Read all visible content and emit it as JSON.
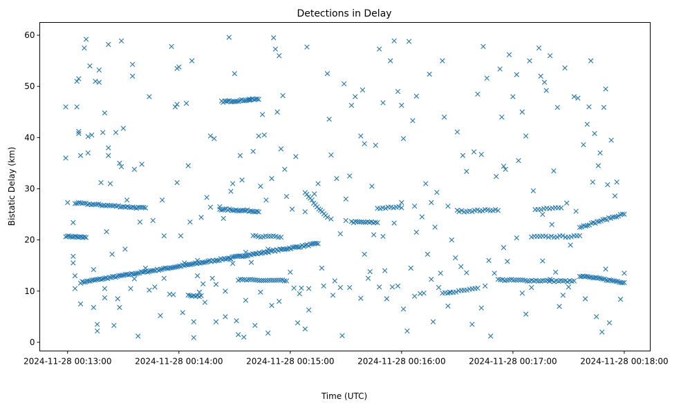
{
  "chart_data": {
    "type": "scatter",
    "title": "Detections in Delay",
    "xlabel": "Time (UTC)",
    "ylabel": "Bistatic Delay (km)",
    "x_units": "seconds after 2024-11-28 00:13:00",
    "xlim": [
      -15,
      314
    ],
    "ylim": [
      -1.7,
      62.5
    ],
    "grid": false,
    "marker": "x",
    "color": "#1f77b4",
    "xticks": [
      {
        "value": 0,
        "label": "2024-11-28 00:13:00"
      },
      {
        "value": 60,
        "label": "2024-11-28 00:14:00"
      },
      {
        "value": 120,
        "label": "2024-11-28 00:15:00"
      },
      {
        "value": 180,
        "label": "2024-11-28 00:16:00"
      },
      {
        "value": 240,
        "label": "2024-11-28 00:17:00"
      },
      {
        "value": 300,
        "label": "2024-11-28 00:18:00"
      }
    ],
    "yticks": [
      {
        "value": 0,
        "label": "0"
      },
      {
        "value": 10,
        "label": "10"
      },
      {
        "value": 20,
        "label": "20"
      },
      {
        "value": 30,
        "label": "30"
      },
      {
        "value": 40,
        "label": "40"
      },
      {
        "value": 50,
        "label": "50"
      },
      {
        "value": 60,
        "label": "60"
      }
    ],
    "tracks": [
      {
        "t0": 7,
        "y0": 11.7,
        "t1": 135,
        "y1": 19.3,
        "n": 150
      },
      {
        "t0": -1,
        "y0": 20.7,
        "t1": 10,
        "y1": 20.5,
        "n": 14
      },
      {
        "t0": 4,
        "y0": 27.2,
        "t1": 42,
        "y1": 26.2,
        "n": 40
      },
      {
        "t0": 83,
        "y0": 47.0,
        "t1": 103,
        "y1": 47.5,
        "n": 25
      },
      {
        "t0": 82,
        "y0": 26.0,
        "t1": 103,
        "y1": 25.6,
        "n": 25
      },
      {
        "t0": 92,
        "y0": 12.2,
        "t1": 118,
        "y1": 12.0,
        "n": 24
      },
      {
        "t0": 100,
        "y0": 20.7,
        "t1": 115,
        "y1": 20.6,
        "n": 12
      },
      {
        "t0": 153,
        "y0": 23.5,
        "t1": 167,
        "y1": 23.4,
        "n": 14
      },
      {
        "t0": 167,
        "y0": 26.2,
        "t1": 180,
        "y1": 26.4,
        "n": 10
      },
      {
        "t0": 211,
        "y0": 25.6,
        "t1": 232,
        "y1": 25.9,
        "n": 16
      },
      {
        "t0": 232,
        "y0": 12.2,
        "t1": 273,
        "y1": 11.9,
        "n": 35
      },
      {
        "t0": 250,
        "y0": 20.6,
        "t1": 276,
        "y1": 20.7,
        "n": 18
      },
      {
        "t0": 252,
        "y0": 26.0,
        "t1": 266,
        "y1": 26.4,
        "n": 10
      },
      {
        "t0": 276,
        "y0": 13.0,
        "t1": 300,
        "y1": 11.7,
        "n": 28
      },
      {
        "t0": 276,
        "y0": 22.5,
        "t1": 300,
        "y1": 25.1,
        "n": 24
      },
      {
        "t0": 202,
        "y0": 9.5,
        "t1": 221,
        "y1": 10.5,
        "n": 14
      },
      {
        "t0": 65,
        "y0": 9.1,
        "t1": 72,
        "y1": 9.0,
        "n": 8
      },
      {
        "t0": 128,
        "y0": 29.2,
        "t1": 140,
        "y1": 24.3,
        "n": 14
      }
    ],
    "points": [
      [
        -1,
        46
      ],
      [
        -1,
        36
      ],
      [
        0,
        27.3
      ],
      [
        3,
        23.4
      ],
      [
        3,
        16.8
      ],
      [
        3,
        15.5
      ],
      [
        4,
        13
      ],
      [
        4,
        10.5
      ],
      [
        5,
        46
      ],
      [
        5,
        51
      ],
      [
        6,
        51.5
      ],
      [
        6,
        41.2
      ],
      [
        6,
        40.8
      ],
      [
        7,
        36.5
      ],
      [
        7,
        7.5
      ],
      [
        9,
        57.5
      ],
      [
        10,
        59.2
      ],
      [
        11,
        40.2
      ],
      [
        11,
        37
      ],
      [
        12,
        54
      ],
      [
        13,
        40.5
      ],
      [
        14,
        6.8
      ],
      [
        15,
        51
      ],
      [
        16,
        3.5
      ],
      [
        16,
        2.2
      ],
      [
        17,
        53.2
      ],
      [
        17,
        50.8
      ],
      [
        18,
        31.2
      ],
      [
        19,
        41
      ],
      [
        20,
        44.8
      ],
      [
        20,
        8.7
      ],
      [
        21,
        21.6
      ],
      [
        22,
        58.2
      ],
      [
        22,
        38
      ],
      [
        22,
        36.5
      ],
      [
        23,
        31
      ],
      [
        24,
        17.2
      ],
      [
        25,
        3.3
      ],
      [
        26,
        41
      ],
      [
        28,
        35
      ],
      [
        28,
        6.8
      ],
      [
        29,
        34.3
      ],
      [
        29,
        58.9
      ],
      [
        30,
        41.8
      ],
      [
        31,
        18.2
      ],
      [
        32,
        27.8
      ],
      [
        34,
        10.5
      ],
      [
        35,
        54.3
      ],
      [
        35,
        52
      ],
      [
        36,
        33.8
      ],
      [
        38,
        1.2
      ],
      [
        39,
        23.5
      ],
      [
        40,
        34.8
      ],
      [
        42,
        14.5
      ],
      [
        44,
        48
      ],
      [
        46,
        23.8
      ],
      [
        50,
        5.2
      ],
      [
        51,
        27.8
      ],
      [
        52,
        20.8
      ],
      [
        56,
        57.8
      ],
      [
        57,
        9.3
      ],
      [
        58,
        46
      ],
      [
        59,
        46.5
      ],
      [
        59,
        53.5
      ],
      [
        59,
        31.2
      ],
      [
        60,
        53.8
      ],
      [
        61,
        20.8
      ],
      [
        62,
        5.8
      ],
      [
        64,
        46.7
      ],
      [
        65,
        34.5
      ],
      [
        66,
        23.5
      ],
      [
        67,
        55
      ],
      [
        68,
        0.9
      ],
      [
        68,
        4
      ],
      [
        70,
        13
      ],
      [
        74,
        7.8
      ],
      [
        75,
        28.3
      ],
      [
        77,
        40.3
      ],
      [
        79,
        39.8
      ],
      [
        80,
        4
      ],
      [
        82,
        26.5
      ],
      [
        84,
        24.2
      ],
      [
        85,
        5
      ],
      [
        87,
        59.6
      ],
      [
        88,
        29.5
      ],
      [
        89,
        31
      ],
      [
        90,
        52.5
      ],
      [
        91,
        4.2
      ],
      [
        92,
        1.5
      ],
      [
        93,
        36.5
      ],
      [
        94,
        31.7
      ],
      [
        95,
        1
      ],
      [
        98,
        47.5
      ],
      [
        100,
        37.3
      ],
      [
        101,
        3.3
      ],
      [
        103,
        40.3
      ],
      [
        104,
        30.5
      ],
      [
        105,
        44.5
      ],
      [
        106,
        40.5
      ],
      [
        107,
        27.8
      ],
      [
        108,
        1.8
      ],
      [
        110,
        32
      ],
      [
        111,
        59.5
      ],
      [
        112,
        57.3
      ],
      [
        113,
        45
      ],
      [
        114,
        56
      ],
      [
        114,
        8
      ],
      [
        115,
        37.8
      ],
      [
        116,
        48.2
      ],
      [
        117,
        33.8
      ],
      [
        118,
        28.5
      ],
      [
        120,
        13.7
      ],
      [
        121,
        26
      ],
      [
        123,
        36.3
      ],
      [
        124,
        3.8
      ],
      [
        128,
        25.5
      ],
      [
        128,
        2.6
      ],
      [
        129,
        57.7
      ],
      [
        130,
        6.3
      ],
      [
        133,
        29
      ],
      [
        135,
        31
      ],
      [
        137,
        14.5
      ],
      [
        140,
        52.5
      ],
      [
        141,
        43.6
      ],
      [
        142,
        36.6
      ],
      [
        145,
        32
      ],
      [
        147,
        10.7
      ],
      [
        148,
        1.3
      ],
      [
        149,
        50.5
      ],
      [
        150,
        28
      ],
      [
        152,
        32.5
      ],
      [
        153,
        46.3
      ],
      [
        155,
        48
      ],
      [
        158,
        40.3
      ],
      [
        159,
        49.3
      ],
      [
        160,
        38.8
      ],
      [
        162,
        12.5
      ],
      [
        164,
        30.5
      ],
      [
        166,
        38.5
      ],
      [
        168,
        57.3
      ],
      [
        170,
        46.8
      ],
      [
        172,
        8.5
      ],
      [
        174,
        55
      ],
      [
        176,
        58.9
      ],
      [
        178,
        49
      ],
      [
        180,
        46.3
      ],
      [
        181,
        39.8
      ],
      [
        183,
        2.2
      ],
      [
        184,
        58.8
      ],
      [
        186,
        43.3
      ],
      [
        187,
        9
      ],
      [
        188,
        48.1
      ],
      [
        191,
        24.5
      ],
      [
        193,
        31
      ],
      [
        195,
        52.4
      ],
      [
        197,
        4
      ],
      [
        199,
        29.3
      ],
      [
        201,
        13.5
      ],
      [
        202,
        55
      ],
      [
        203,
        44
      ],
      [
        205,
        7.1
      ],
      [
        207,
        20
      ],
      [
        210,
        41.1
      ],
      [
        213,
        36.5
      ],
      [
        215,
        33.4
      ],
      [
        218,
        3.5
      ],
      [
        219,
        37.2
      ],
      [
        221,
        48.5
      ],
      [
        223,
        36.7
      ],
      [
        224,
        57.8
      ],
      [
        226,
        51.6
      ],
      [
        227,
        16
      ],
      [
        228,
        1.2
      ],
      [
        231,
        32.4
      ],
      [
        233,
        53.4
      ],
      [
        234,
        44
      ],
      [
        235,
        34.4
      ],
      [
        236,
        33.8
      ],
      [
        238,
        56.2
      ],
      [
        240,
        48
      ],
      [
        242,
        52.3
      ],
      [
        243,
        35.5
      ],
      [
        245,
        45
      ],
      [
        247,
        40.3
      ],
      [
        249,
        55
      ],
      [
        251,
        29.6
      ],
      [
        254,
        57.5
      ],
      [
        255,
        52
      ],
      [
        257,
        50.8
      ],
      [
        258,
        49.2
      ],
      [
        260,
        56
      ],
      [
        262,
        33.5
      ],
      [
        264,
        45.9
      ],
      [
        265,
        7
      ],
      [
        268,
        53.6
      ],
      [
        269,
        27.2
      ],
      [
        271,
        19
      ],
      [
        273,
        48
      ],
      [
        275,
        47.7
      ],
      [
        278,
        38.6
      ],
      [
        280,
        42.6
      ],
      [
        281,
        46
      ],
      [
        282,
        55
      ],
      [
        283,
        31.3
      ],
      [
        284,
        40.8
      ],
      [
        285,
        5
      ],
      [
        286,
        34.5
      ],
      [
        287,
        37
      ],
      [
        288,
        2
      ],
      [
        289,
        45.9
      ],
      [
        290,
        49.5
      ],
      [
        291,
        30.8
      ],
      [
        292,
        3.8
      ],
      [
        293,
        39.5
      ],
      [
        295,
        28.6
      ],
      [
        296,
        31.3
      ],
      [
        20,
        10.5
      ],
      [
        44,
        10.2
      ],
      [
        55,
        9.4
      ],
      [
        71,
        9.8
      ],
      [
        85,
        10
      ],
      [
        130,
        10.5
      ],
      [
        138,
        11
      ],
      [
        175,
        10.8
      ],
      [
        190,
        9.5
      ],
      [
        200,
        10.7
      ],
      [
        215,
        13.6
      ],
      [
        225,
        11
      ],
      [
        250,
        10.7
      ],
      [
        260,
        12.3
      ],
      [
        270,
        10.8
      ],
      [
        47,
        10.8
      ],
      [
        52,
        12.5
      ],
      [
        78,
        12.5
      ],
      [
        96,
        8.2
      ],
      [
        104,
        9.8
      ],
      [
        110,
        7.2
      ],
      [
        122,
        10.6
      ],
      [
        126,
        10.6
      ],
      [
        143,
        9.2
      ],
      [
        152,
        10.7
      ],
      [
        158,
        8.6
      ],
      [
        163,
        13.8
      ],
      [
        168,
        10.8
      ],
      [
        178,
        11
      ],
      [
        185,
        14.5
      ],
      [
        192,
        9.6
      ],
      [
        196,
        12.3
      ],
      [
        206,
        9.8
      ],
      [
        212,
        14.8
      ],
      [
        230,
        13.5
      ],
      [
        237,
        15.8
      ],
      [
        245,
        9.6
      ],
      [
        247,
        5.5
      ],
      [
        256,
        15.9
      ],
      [
        263,
        13.7
      ],
      [
        267,
        9.2
      ],
      [
        279,
        8.5
      ],
      [
        290,
        14.3
      ],
      [
        298,
        8.4
      ],
      [
        300,
        13.5
      ],
      [
        14,
        14.2
      ],
      [
        27,
        8.5
      ],
      [
        36,
        12.4
      ],
      [
        73,
        11.4
      ],
      [
        88,
        16.2
      ],
      [
        99,
        15.6
      ],
      [
        125,
        9.5
      ],
      [
        144,
        12
      ],
      [
        160,
        17.2
      ],
      [
        171,
        14
      ],
      [
        181,
        6.5
      ],
      [
        194,
        17.2
      ],
      [
        209,
        16.5
      ],
      [
        223,
        6.7
      ],
      [
        235,
        18.5
      ],
      [
        242,
        20.4
      ],
      [
        256,
        25
      ],
      [
        261,
        23
      ],
      [
        274,
        25.6
      ],
      [
        180,
        27.3
      ],
      [
        187,
        26.6
      ],
      [
        196,
        27.3
      ],
      [
        198,
        22.5
      ],
      [
        205,
        26.6
      ],
      [
        210,
        25.8
      ],
      [
        150,
        23.8
      ],
      [
        142,
        24.1
      ],
      [
        147,
        21.2
      ],
      [
        165,
        21
      ],
      [
        170,
        20.7
      ],
      [
        176,
        23.3
      ],
      [
        188,
        21.5
      ],
      [
        72,
        24.4
      ],
      [
        77,
        26.4
      ],
      [
        96,
        17.6
      ],
      [
        108,
        18.2
      ],
      [
        89,
        15.4
      ],
      [
        80,
        11.3
      ],
      [
        63,
        15.5
      ],
      [
        70,
        16
      ]
    ]
  }
}
